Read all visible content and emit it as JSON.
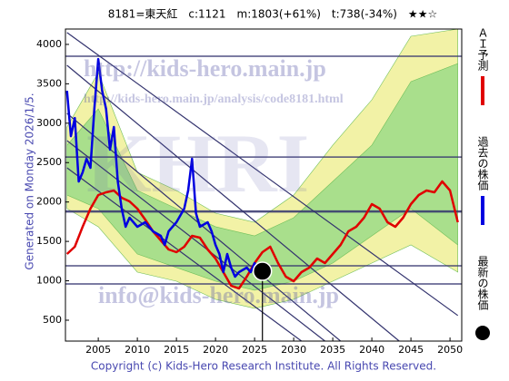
{
  "chart_data": {
    "type": "line",
    "title": "8181=東天紅　c:1121　m:1803(+61%)　t:738(-34%)　★★☆",
    "side_label": "Generated on Monday 2026/1/5.",
    "footer": "Copyright (c) Kids-Hero Research Institute. All Rights Reserved.",
    "watermarks": [
      "http://kids-hero.main.jp",
      "http://kids-hero.main.jp/analysis/code8181.html",
      "KHRI",
      "info@kids-hero.main.jp"
    ],
    "xlim": [
      2000.8,
      2051.5
    ],
    "ylim": [
      235,
      4195
    ],
    "xticks": [
      2005,
      2010,
      2015,
      2020,
      2025,
      2030,
      2035,
      2040,
      2045,
      2050
    ],
    "yticks": [
      500,
      1000,
      1500,
      2000,
      2500,
      3000,
      3500,
      4000
    ],
    "bands": [
      {
        "color": "#f2f2a6",
        "x": [
          2001,
          2005,
          2010,
          2015,
          2020,
          2025,
          2030,
          2035,
          2040,
          2045,
          2051
        ],
        "upper": [
          2952,
          3642,
          2376,
          2146,
          1858,
          1743,
          2088,
          2721,
          3297,
          4103,
          4195
        ],
        "lower": [
          1916,
          1686,
          1110,
          995,
          765,
          650,
          765,
          995,
          1225,
          1455,
          1110
        ]
      },
      {
        "color": "#a9df8c",
        "x": [
          2001,
          2005,
          2010,
          2015,
          2020,
          2025,
          2030,
          2035,
          2040,
          2045,
          2051
        ],
        "upper": [
          2721,
          3182,
          2146,
          1916,
          1686,
          1570,
          1801,
          2261,
          2721,
          3527,
          3757
        ],
        "lower": [
          2088,
          1916,
          1340,
          1168,
          995,
          880,
          995,
          1225,
          1570,
          1916,
          1455
        ]
      }
    ],
    "levels": {
      "color": "#33336e",
      "values": [
        3850,
        2570,
        1880,
        1190,
        960
      ]
    },
    "trend_lines": [
      {
        "color": "#33336e",
        "x": [
          2001,
          2051
        ],
        "values": [
          4150,
          560
        ]
      },
      {
        "color": "#33336e",
        "x": [
          2001,
          2043.5
        ],
        "values": [
          3734,
          235
        ]
      },
      {
        "color": "#33336e",
        "x": [
          2001,
          2036
        ],
        "values": [
          3124,
          235
        ]
      },
      {
        "color": "#33336e",
        "x": [
          2001,
          2034
        ],
        "values": [
          2779,
          235
        ]
      },
      {
        "color": "#33336e",
        "x": [
          2001,
          2031
        ],
        "values": [
          2434,
          235
        ]
      }
    ],
    "series": [
      {
        "name": "ＡＩ予測",
        "color": "#e00000",
        "x": [
          2001,
          2002,
          2003,
          2004,
          2005,
          2006,
          2007,
          2008,
          2009,
          2010,
          2011,
          2012,
          2013,
          2014,
          2015,
          2016,
          2017,
          2018,
          2019,
          2020,
          2021,
          2022,
          2023,
          2024,
          2025,
          2026,
          2027,
          2028,
          2029,
          2030,
          2031,
          2032,
          2033,
          2034,
          2035,
          2036,
          2037,
          2038,
          2039,
          2040,
          2041,
          2042,
          2043,
          2044,
          2045,
          2046,
          2047,
          2048,
          2049,
          2050,
          2051
        ],
        "values": [
          1340,
          1432,
          1686,
          1916,
          2088,
          2123,
          2146,
          2054,
          2008,
          1916,
          1778,
          1628,
          1513,
          1398,
          1363,
          1432,
          1570,
          1547,
          1398,
          1283,
          1110,
          937,
          903,
          1052,
          1225,
          1363,
          1432,
          1225,
          1052,
          995,
          1110,
          1168,
          1283,
          1225,
          1340,
          1455,
          1628,
          1686,
          1801,
          1973,
          1916,
          1743,
          1686,
          1801,
          1973,
          2088,
          2146,
          2123,
          2261,
          2146,
          1743
        ]
      },
      {
        "name": "過去の株価",
        "color": "#0000e0",
        "x": [
          2001,
          2001.5,
          2002,
          2002.5,
          2003,
          2003.5,
          2004,
          2004.5,
          2005,
          2005.5,
          2006,
          2006.5,
          2007,
          2007.5,
          2008,
          2008.5,
          2009,
          2010,
          2011,
          2012,
          2013,
          2013.5,
          2014,
          2015,
          2016,
          2016.5,
          2017,
          2017.5,
          2018,
          2019,
          2019.5,
          2020,
          2020.5,
          2021,
          2021.5,
          2022,
          2022.5,
          2023,
          2024,
          2024.5,
          2025,
          2025.5,
          2026
        ],
        "values": [
          3411,
          2836,
          3066,
          2260,
          2376,
          2549,
          2434,
          3181,
          3814,
          3411,
          3181,
          2664,
          2952,
          2261,
          1916,
          1686,
          1801,
          1686,
          1743,
          1628,
          1570,
          1455,
          1628,
          1743,
          1916,
          2146,
          2549,
          1858,
          1686,
          1743,
          1628,
          1455,
          1340,
          1110,
          1340,
          1167,
          1052,
          1110,
          1167,
          1110,
          1225,
          1110,
          1121
        ]
      }
    ],
    "latest": {
      "name": "最新の株価",
      "color": "#000000",
      "x": 2026,
      "value": 1121
    }
  }
}
